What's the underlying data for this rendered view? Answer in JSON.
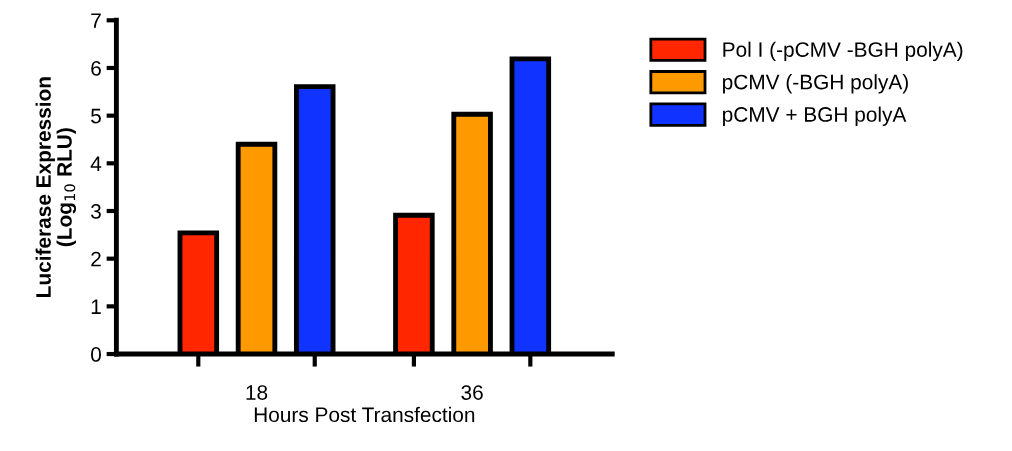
{
  "chart_data": {
    "type": "bar",
    "xlabel": "Hours Post Transfection",
    "ylabel": "Luciferase Expression\n(Log$_{10}$ RLU)",
    "categories": [
      "18",
      "36"
    ],
    "series": [
      {
        "name": "Pol I (-pCMV -BGH polyA)",
        "color": "#ff2600",
        "values": [
          2.54,
          2.91
        ]
      },
      {
        "name": "pCMV (-BGH polyA)",
        "color": "#ff9900",
        "values": [
          4.4,
          5.03
        ]
      },
      {
        "name": "pCMV + BGH polyA",
        "color": "#1133ff",
        "values": [
          5.61,
          6.19
        ]
      }
    ],
    "ylim": [
      0,
      7
    ],
    "yticks": [
      0,
      1,
      2,
      3,
      4,
      5,
      6,
      7
    ],
    "grid": false,
    "legend": "right"
  }
}
